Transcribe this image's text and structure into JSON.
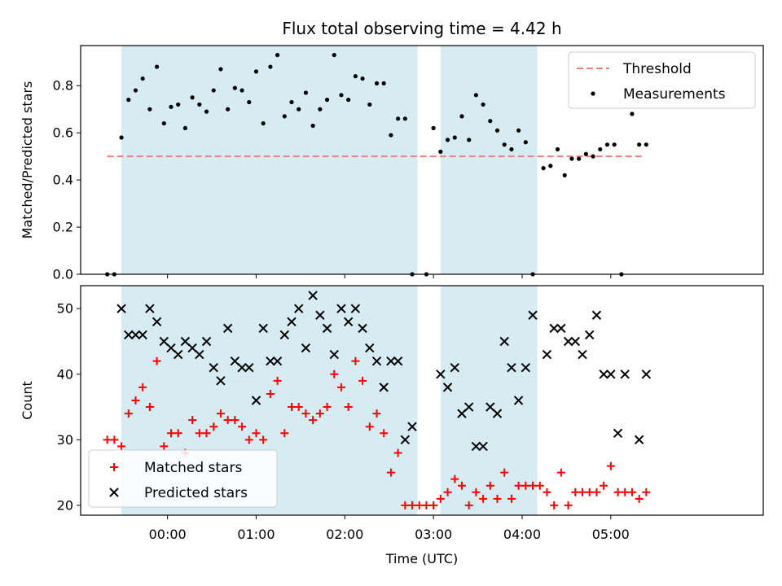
{
  "chart_data": [
    {
      "type": "scatter",
      "title": "Flux total observing time = 4.42 h",
      "xlabel": "",
      "ylabel": "Matched/Predicted stars",
      "xlim": [
        -0.98,
        6.72
      ],
      "ylim": [
        0.0,
        0.97
      ],
      "yticks": [
        0.0,
        0.2,
        0.4,
        0.6,
        0.8
      ],
      "ytick_labels": [
        "0.0",
        "0.2",
        "0.4",
        "0.6",
        "0.8"
      ],
      "xticks": [
        0,
        1,
        2,
        3,
        4,
        5
      ],
      "show_xtick_labels": false,
      "shaded_intervals": [
        [
          -0.52,
          2.82
        ],
        [
          3.08,
          4.17
        ]
      ],
      "shade_color": "#add8e6",
      "legend_position": "top-right",
      "threshold": {
        "name": "Threshold",
        "y": 0.5,
        "x_range": [
          -0.68,
          5.38
        ],
        "color": "#f08080",
        "style": "dashed"
      },
      "series": [
        {
          "name": "Measurements",
          "color": "#000000",
          "marker": "dot",
          "x": [
            -0.68,
            -0.6,
            -0.52,
            -0.44,
            -0.36,
            -0.28,
            -0.2,
            -0.12,
            -0.04,
            0.04,
            0.12,
            0.2,
            0.28,
            0.36,
            0.44,
            0.52,
            0.6,
            0.68,
            0.76,
            0.84,
            0.92,
            1.0,
            1.08,
            1.16,
            1.24,
            1.32,
            1.4,
            1.48,
            1.56,
            1.64,
            1.72,
            1.8,
            1.88,
            1.96,
            2.04,
            2.12,
            2.2,
            2.28,
            2.36,
            2.44,
            2.52,
            2.6,
            2.68,
            2.76,
            2.92,
            3.0,
            3.08,
            3.16,
            3.24,
            3.32,
            3.4,
            3.48,
            3.56,
            3.64,
            3.72,
            3.8,
            3.88,
            3.96,
            4.04,
            4.12,
            4.24,
            4.32,
            4.4,
            4.48,
            4.56,
            4.64,
            4.72,
            4.8,
            4.88,
            4.96,
            5.04,
            5.12,
            5.24,
            5.32,
            5.4
          ],
          "y": [
            0.0,
            0.0,
            0.58,
            0.74,
            0.78,
            0.83,
            0.7,
            0.88,
            0.64,
            0.71,
            0.72,
            0.62,
            0.75,
            0.72,
            0.69,
            0.78,
            0.87,
            0.7,
            0.79,
            0.78,
            0.73,
            0.86,
            0.64,
            0.88,
            0.93,
            0.67,
            0.73,
            0.7,
            0.77,
            0.63,
            0.7,
            0.74,
            0.93,
            0.76,
            0.74,
            0.84,
            0.83,
            0.72,
            0.81,
            0.81,
            0.59,
            0.66,
            0.66,
            0.0,
            0.0,
            0.62,
            0.52,
            0.57,
            0.58,
            0.67,
            0.57,
            0.76,
            0.72,
            0.65,
            0.61,
            0.55,
            0.53,
            0.61,
            0.56,
            0.0,
            0.45,
            0.46,
            0.53,
            0.42,
            0.49,
            0.49,
            0.51,
            0.5,
            0.53,
            0.55,
            0.55,
            0.0,
            0.68,
            0.55,
            0.55
          ]
        }
      ]
    },
    {
      "type": "scatter",
      "title": "",
      "xlabel": "Time (UTC)",
      "ylabel": "Count",
      "xlim": [
        -0.98,
        6.72
      ],
      "ylim": [
        18.5,
        53.5
      ],
      "yticks": [
        20,
        30,
        40,
        50
      ],
      "ytick_labels": [
        "20",
        "30",
        "40",
        "50"
      ],
      "xticks": [
        0,
        1,
        2,
        3,
        4,
        5
      ],
      "xtick_labels": [
        "00:00",
        "01:00",
        "02:00",
        "03:00",
        "04:00",
        "05:00"
      ],
      "shaded_intervals": [
        [
          -0.52,
          2.82
        ],
        [
          3.08,
          4.17
        ]
      ],
      "shade_color": "#add8e6",
      "legend_position": "lower-left",
      "series": [
        {
          "name": "Matched stars",
          "color": "#ff0000",
          "marker": "plus",
          "x": [
            -0.68,
            -0.6,
            -0.52,
            -0.44,
            -0.36,
            -0.28,
            -0.2,
            -0.12,
            -0.04,
            0.04,
            0.12,
            0.2,
            0.28,
            0.36,
            0.44,
            0.52,
            0.6,
            0.68,
            0.76,
            0.84,
            0.92,
            1.0,
            1.08,
            1.16,
            1.24,
            1.32,
            1.4,
            1.48,
            1.56,
            1.64,
            1.72,
            1.8,
            1.88,
            1.96,
            2.04,
            2.12,
            2.2,
            2.28,
            2.36,
            2.44,
            2.52,
            2.6,
            2.68,
            2.76,
            2.84,
            2.92,
            3.0,
            3.08,
            3.16,
            3.24,
            3.32,
            3.4,
            3.48,
            3.56,
            3.64,
            3.72,
            3.8,
            3.88,
            3.96,
            4.04,
            4.12,
            4.2,
            4.28,
            4.36,
            4.44,
            4.52,
            4.6,
            4.68,
            4.76,
            4.84,
            4.92,
            5.0,
            5.08,
            5.16,
            5.24,
            5.32,
            5.4
          ],
          "y": [
            30,
            30,
            29,
            34,
            36,
            38,
            35,
            42,
            29,
            31,
            31,
            28,
            33,
            31,
            31,
            32,
            34,
            33,
            33,
            32,
            30,
            31,
            30,
            37,
            39,
            31,
            35,
            35,
            34,
            33,
            34,
            35,
            40,
            38,
            35,
            42,
            39,
            32,
            34,
            31,
            25,
            28,
            20,
            20,
            20,
            20,
            20,
            21,
            22,
            24,
            23,
            20,
            22,
            21,
            23,
            21,
            25,
            21,
            23,
            23,
            23,
            23,
            22,
            20,
            25,
            20,
            22,
            22,
            22,
            22,
            23,
            26,
            22,
            22,
            22,
            21,
            22
          ]
        },
        {
          "name": "Predicted stars",
          "color": "#000000",
          "marker": "x",
          "x": [
            -0.52,
            -0.44,
            -0.36,
            -0.28,
            -0.2,
            -0.12,
            -0.04,
            0.04,
            0.12,
            0.2,
            0.28,
            0.36,
            0.44,
            0.52,
            0.6,
            0.68,
            0.76,
            0.84,
            0.92,
            1.0,
            1.08,
            1.16,
            1.24,
            1.32,
            1.4,
            1.48,
            1.56,
            1.64,
            1.72,
            1.8,
            1.88,
            1.96,
            2.04,
            2.12,
            2.2,
            2.28,
            2.36,
            2.44,
            2.52,
            2.6,
            2.68,
            2.76,
            3.08,
            3.16,
            3.24,
            3.32,
            3.4,
            3.48,
            3.56,
            3.64,
            3.72,
            3.8,
            3.88,
            3.96,
            4.04,
            4.12,
            4.28,
            4.36,
            4.44,
            4.52,
            4.6,
            4.68,
            4.76,
            4.84,
            4.92,
            5.0,
            5.08,
            5.16,
            5.32,
            5.4
          ],
          "y": [
            50,
            46,
            46,
            46,
            50,
            48,
            45,
            44,
            43,
            45,
            44,
            43,
            45,
            41,
            39,
            47,
            42,
            41,
            41,
            36,
            47,
            42,
            42,
            46,
            48,
            50,
            44,
            52,
            49,
            47,
            43,
            50,
            48,
            50,
            47,
            44,
            42,
            38,
            42,
            42,
            30,
            32,
            40,
            38,
            41,
            34,
            35,
            29,
            29,
            35,
            34,
            45,
            41,
            36,
            41,
            49,
            43,
            47,
            47,
            45,
            45,
            43,
            46,
            49,
            40,
            40,
            31,
            40,
            30,
            40
          ]
        }
      ]
    }
  ]
}
